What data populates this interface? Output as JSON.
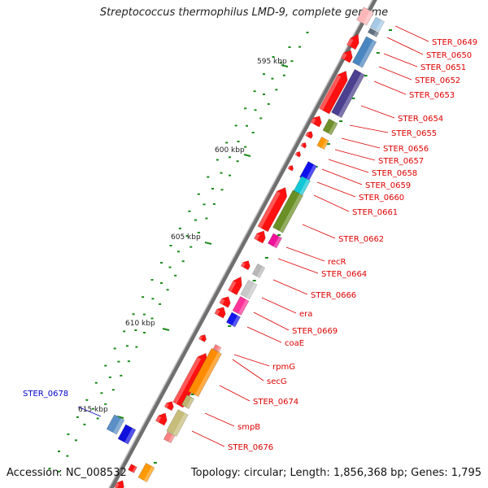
{
  "title": "Streptococcus thermophilus LMD-9, complete genome",
  "footer": {
    "accession": "Accession: NC_008532",
    "summary": "Topology: circular; Length: 1,856,368 bp; Genes: 1,795"
  },
  "scale_labels": [
    "595 kbp",
    "600 kbp",
    "605 kbp",
    "610 kbp",
    "615 kbp"
  ],
  "colors": {
    "backbone": "#8a8a8a",
    "gene_arrow": "#ee0000",
    "label_red": "#dd0000",
    "label_blue": "#0000cc",
    "tick": "#1a8a1a"
  },
  "gene_labels": [
    {
      "text": "STER_0649",
      "color": "red"
    },
    {
      "text": "STER_0650",
      "color": "red"
    },
    {
      "text": "STER_0651",
      "color": "red"
    },
    {
      "text": "STER_0652",
      "color": "red"
    },
    {
      "text": "STER_0653",
      "color": "red"
    },
    {
      "text": "STER_0654",
      "color": "red"
    },
    {
      "text": "STER_0655",
      "color": "red"
    },
    {
      "text": "STER_0656",
      "color": "red"
    },
    {
      "text": "STER_0657",
      "color": "red"
    },
    {
      "text": "STER_0658",
      "color": "red"
    },
    {
      "text": "STER_0659",
      "color": "red"
    },
    {
      "text": "STER_0660",
      "color": "red"
    },
    {
      "text": "STER_0661",
      "color": "red"
    },
    {
      "text": "STER_0662",
      "color": "red"
    },
    {
      "text": "recR",
      "color": "red"
    },
    {
      "text": "STER_0664",
      "color": "red"
    },
    {
      "text": "STER_0666",
      "color": "red"
    },
    {
      "text": "era",
      "color": "red"
    },
    {
      "text": "STER_0669",
      "color": "red"
    },
    {
      "text": "coaE",
      "color": "red"
    },
    {
      "text": "rpmG",
      "color": "red"
    },
    {
      "text": "secG",
      "color": "red"
    },
    {
      "text": "STER_0674",
      "color": "red"
    },
    {
      "text": "smpB",
      "color": "red"
    },
    {
      "text": "STER_0676",
      "color": "red"
    },
    {
      "text": "STER_0678",
      "color": "blue"
    }
  ]
}
